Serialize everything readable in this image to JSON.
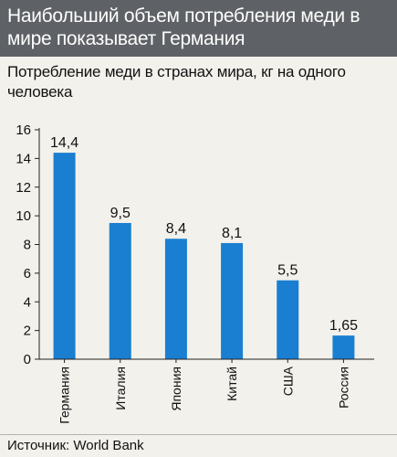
{
  "header": {
    "title": "Наибольший объем потребления меди в мире показывает Германия"
  },
  "footer": {
    "source": "Источник: World Bank"
  },
  "colors": {
    "bar": "#1a7fd0",
    "header_bg": "#5e6165",
    "panel_bg": "#f3f1ec",
    "axis": "#222222"
  },
  "chart_data": {
    "type": "bar",
    "title": "Потребление меди в странах мира, кг на одного человека",
    "xlabel": "",
    "ylabel": "",
    "ylim": [
      0,
      16
    ],
    "yticks": [
      0,
      2,
      4,
      6,
      8,
      10,
      12,
      14,
      16
    ],
    "grid": false,
    "categories": [
      "Германия",
      "Италия",
      "Япония",
      "Китай",
      "США",
      "Россия"
    ],
    "values": [
      14.4,
      9.5,
      8.4,
      8.1,
      5.5,
      1.65
    ],
    "value_labels": [
      "14,4",
      "9,5",
      "8,4",
      "8,1",
      "5,5",
      "1,65"
    ]
  }
}
